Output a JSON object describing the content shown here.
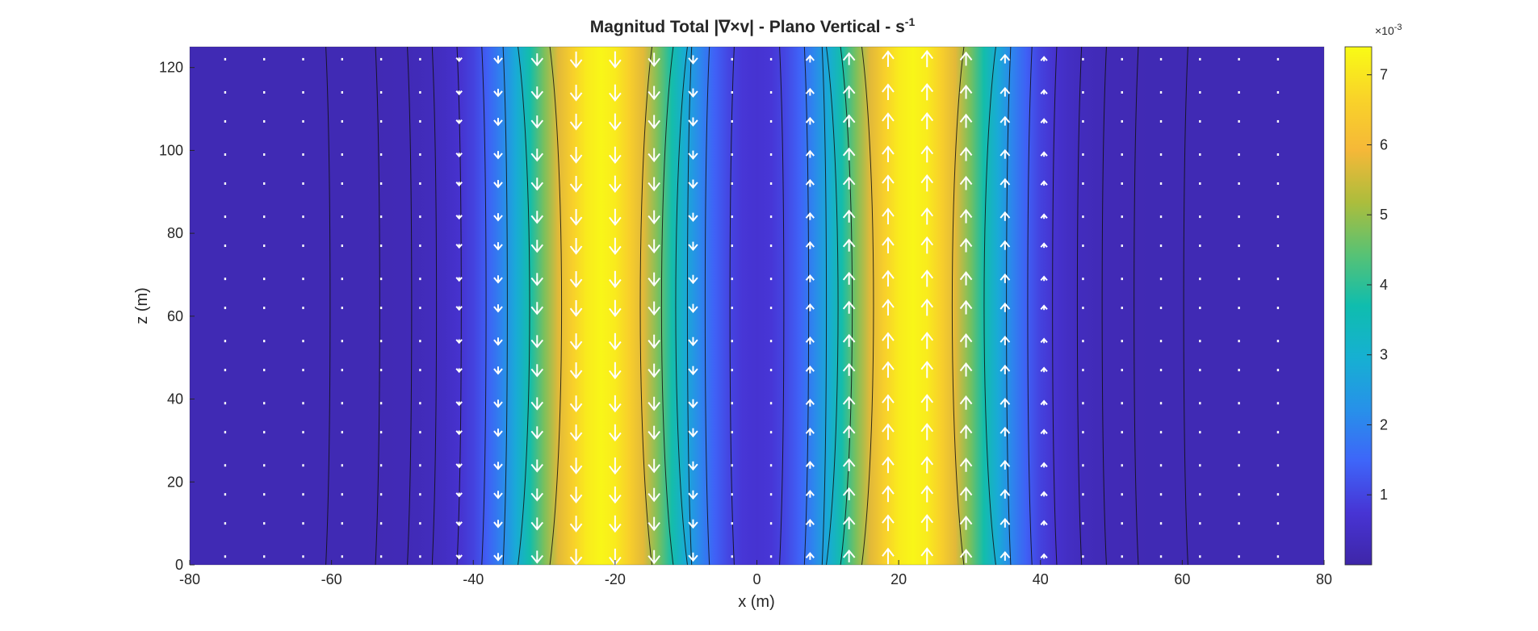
{
  "chart_data": {
    "type": "heatmap",
    "title": "Magnitud  Total  |∇×v|  -  Plano  Vertical  -  s",
    "title_superscript": "-1",
    "xlabel": "x (m)",
    "ylabel": "z (m)",
    "xlim": [
      -80,
      80
    ],
    "ylim": [
      0,
      125
    ],
    "xticks": [
      -80,
      -60,
      -40,
      -20,
      0,
      20,
      40,
      60,
      80
    ],
    "yticks": [
      0,
      20,
      40,
      60,
      80,
      100,
      120
    ],
    "colormap": "parula",
    "colorbar": {
      "range": [
        0,
        7.4
      ],
      "ticks": [
        1,
        2,
        3,
        4,
        5,
        6,
        7
      ],
      "exponent_label": "×10",
      "exponent_value": "-3"
    },
    "field": {
      "description_peaks": [
        {
          "x": -22,
          "value": 7.3,
          "vertical_flow": "down"
        },
        {
          "x": 22,
          "value": 7.3,
          "vertical_flow": "up"
        }
      ],
      "zero_at": 0,
      "background": 0.2
    },
    "contour_x_at_mid": [
      -60,
      -53,
      -48.5,
      -45,
      -41.5,
      -38,
      -35,
      -31.5,
      -27,
      -17,
      -14,
      -12,
      -10,
      -7.5,
      -4,
      4,
      7.5,
      10,
      12,
      14,
      17,
      27,
      31.5,
      35,
      38,
      41.5,
      45,
      48.5,
      53,
      60
    ],
    "quiver": {
      "x": [
        -75,
        -69.5,
        -64,
        -58.5,
        -53,
        -47.5,
        -42,
        -36.5,
        -31,
        -25.5,
        -20,
        -14.5,
        -9,
        -3.5,
        2,
        7.5,
        13,
        18.5,
        24,
        29.5,
        35,
        40.5,
        46,
        51.5,
        57,
        62.5,
        68,
        73.5
      ],
      "z": [
        2,
        10,
        17,
        24,
        32,
        39,
        47,
        54,
        62,
        69,
        77,
        84,
        92,
        99,
        107,
        114,
        122
      ],
      "color": "#ffffff"
    }
  }
}
